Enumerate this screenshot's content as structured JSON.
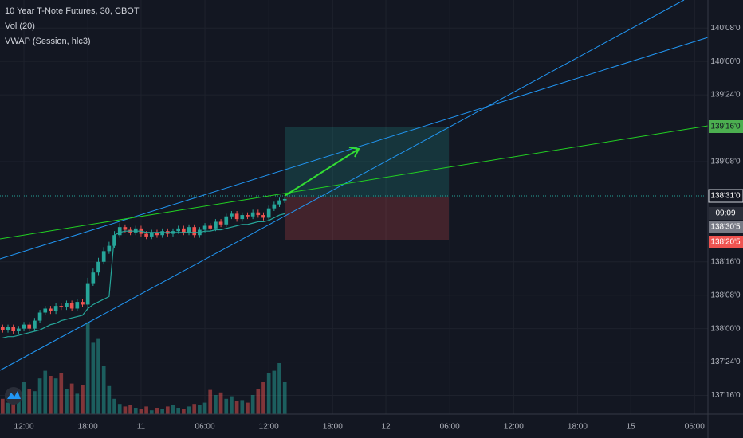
{
  "chart_data": {
    "type": "candlestick",
    "title": "10 Year T-Note Futures, 30, CBOT",
    "indicators": [
      "Vol (20)",
      "VWAP (Session, hlc3)"
    ],
    "up_color": "#26a69a",
    "down_color": "#ef5350",
    "vwap_color": "#26a69a",
    "grid": true,
    "xlim": [
      -0.5,
      132.5
    ],
    "xticks": [
      {
        "value": 4,
        "label": "12:00"
      },
      {
        "value": 16,
        "label": "18:00"
      },
      {
        "value": 26,
        "label": "11"
      },
      {
        "value": 38,
        "label": "06:00"
      },
      {
        "value": 50,
        "label": "12:00"
      },
      {
        "value": 62,
        "label": "18:00"
      },
      {
        "value": 72,
        "label": "12"
      },
      {
        "value": 84,
        "label": "06:00"
      },
      {
        "value": 96,
        "label": "12:00"
      },
      {
        "value": 108,
        "label": "18:00"
      },
      {
        "value": 118,
        "label": "15"
      },
      {
        "value": 130,
        "label": "06:00"
      }
    ],
    "ylim": [
      137.36,
      140.46
    ],
    "yticks": [
      {
        "value": 140.25,
        "label": "140'08'0"
      },
      {
        "value": 140,
        "label": "140'00'0"
      },
      {
        "value": 139.75,
        "label": "139'24'0"
      },
      {
        "value": 139.25,
        "label": "139'08'0"
      },
      {
        "value": 138.5,
        "label": "138'16'0"
      },
      {
        "value": 138.25,
        "label": "138'08'0"
      },
      {
        "value": 138,
        "label": "138'00'0"
      },
      {
        "value": 137.75,
        "label": "137'24'0"
      },
      {
        "value": 137.5,
        "label": "137'16'0"
      }
    ],
    "price_markers": [
      {
        "label": "139'16'0",
        "color": "#4caf50"
      },
      {
        "label": "138'31'0",
        "color": "#131722"
      },
      {
        "label": "09:09",
        "color": "#2a2e39"
      },
      {
        "label": "138'30'5",
        "color": "#787b86"
      },
      {
        "label": "138'20'5",
        "color": "#ef5350"
      }
    ],
    "x": [
      0,
      1,
      2,
      3,
      4,
      5,
      6,
      7,
      8,
      9,
      10,
      11,
      12,
      13,
      14,
      15,
      16,
      17,
      18,
      19,
      20,
      21,
      22,
      23,
      24,
      25,
      26,
      27,
      28,
      29,
      30,
      31,
      32,
      33,
      34,
      35,
      36,
      37,
      38,
      39,
      40,
      41,
      42,
      43,
      44,
      45,
      46,
      47,
      48,
      49,
      50,
      51,
      52,
      53
    ],
    "open": [
      138.01,
      137.99,
      138.01,
      137.98,
      138.0,
      138.03,
      138.0,
      138.06,
      138.12,
      138.15,
      138.13,
      138.17,
      138.16,
      138.19,
      138.15,
      138.2,
      138.18,
      138.34,
      138.42,
      138.5,
      138.58,
      138.62,
      138.7,
      138.76,
      138.74,
      138.72,
      138.75,
      138.71,
      138.69,
      138.72,
      138.7,
      138.73,
      138.71,
      138.73,
      138.75,
      138.72,
      138.76,
      138.7,
      138.74,
      138.77,
      138.75,
      138.8,
      138.78,
      138.84,
      138.86,
      138.82,
      138.85,
      138.84,
      138.87,
      138.85,
      138.83,
      138.9,
      138.93,
      138.96
    ],
    "high": [
      138.03,
      138.03,
      138.03,
      138.02,
      138.05,
      138.05,
      138.08,
      138.14,
      138.17,
      138.17,
      138.19,
      138.19,
      138.21,
      138.21,
      138.22,
      138.22,
      138.38,
      138.45,
      138.53,
      138.61,
      138.65,
      138.73,
      138.79,
      138.78,
      138.76,
      138.77,
      138.77,
      138.73,
      138.74,
      138.74,
      138.75,
      138.75,
      138.75,
      138.77,
      138.77,
      138.78,
      138.78,
      138.76,
      138.79,
      138.79,
      138.82,
      138.82,
      138.86,
      138.88,
      138.88,
      138.87,
      138.87,
      138.89,
      138.89,
      138.87,
      138.92,
      138.95,
      138.98,
      138.99
    ],
    "low": [
      137.97,
      137.97,
      137.96,
      137.96,
      137.98,
      137.98,
      137.98,
      138.04,
      138.1,
      138.11,
      138.11,
      138.14,
      138.14,
      138.13,
      138.13,
      138.16,
      138.14,
      138.32,
      138.4,
      138.48,
      138.56,
      138.6,
      138.68,
      138.72,
      138.7,
      138.7,
      138.69,
      138.67,
      138.67,
      138.68,
      138.68,
      138.69,
      138.69,
      138.71,
      138.7,
      138.7,
      138.68,
      138.68,
      138.72,
      138.73,
      138.73,
      138.76,
      138.76,
      138.82,
      138.8,
      138.8,
      138.82,
      138.82,
      138.83,
      138.81,
      138.81,
      138.88,
      138.91,
      138.94
    ],
    "close": [
      137.99,
      138.01,
      137.98,
      138.0,
      138.03,
      138.0,
      138.06,
      138.12,
      138.15,
      138.13,
      138.17,
      138.16,
      138.19,
      138.15,
      138.2,
      138.18,
      138.34,
      138.42,
      138.5,
      138.58,
      138.62,
      138.7,
      138.76,
      138.74,
      138.72,
      138.75,
      138.71,
      138.69,
      138.72,
      138.7,
      138.73,
      138.71,
      138.73,
      138.75,
      138.72,
      138.76,
      138.7,
      138.74,
      138.77,
      138.75,
      138.8,
      138.78,
      138.84,
      138.86,
      138.82,
      138.85,
      138.84,
      138.87,
      138.85,
      138.83,
      138.9,
      138.93,
      138.96,
      138.97
    ],
    "volume": [
      120,
      90,
      110,
      150,
      250,
      200,
      180,
      280,
      340,
      300,
      280,
      320,
      200,
      240,
      160,
      230,
      720,
      560,
      590,
      380,
      220,
      120,
      80,
      60,
      70,
      50,
      40,
      60,
      30,
      50,
      40,
      60,
      70,
      50,
      40,
      60,
      80,
      70,
      90,
      190,
      150,
      170,
      120,
      140,
      100,
      110,
      90,
      150,
      200,
      250,
      320,
      340,
      400,
      250
    ],
    "volume_lim": [
      0,
      1000
    ],
    "vwap": [
      137.93,
      137.94,
      137.94,
      137.95,
      137.96,
      137.97,
      137.98,
      137.99,
      138.01,
      138.03,
      138.04,
      138.06,
      138.07,
      138.08,
      138.09,
      138.1,
      138.15,
      138.18,
      138.2,
      138.22,
      138.24,
      138.7,
      138.72,
      138.73,
      138.73,
      138.73,
      138.73,
      138.72,
      138.72,
      138.72,
      138.72,
      138.72,
      138.72,
      138.72,
      138.72,
      138.72,
      138.72,
      138.72,
      138.73,
      138.73,
      138.74,
      138.74,
      138.75,
      138.76,
      138.77,
      138.78,
      138.78,
      138.79,
      138.8,
      138.8,
      138.81,
      138.83,
      138.85,
      138.86
    ]
  }
}
